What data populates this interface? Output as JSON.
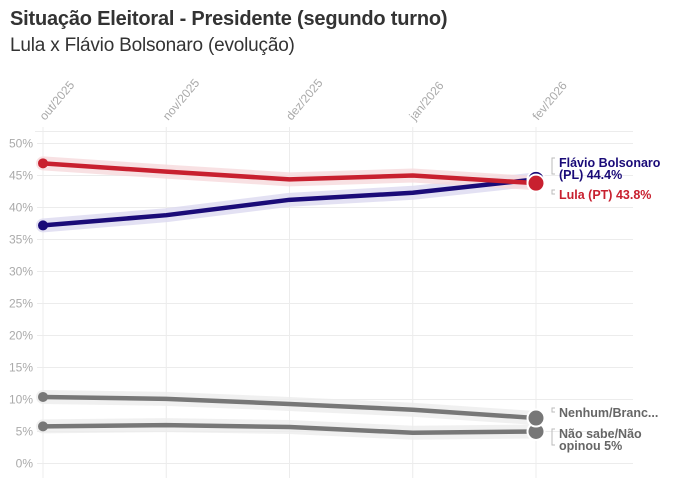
{
  "header": {
    "title": "Situação Eleitoral - Presidente (segundo turno)",
    "subtitle": "Lula x Flávio Bolsonaro (evolução)"
  },
  "chart_data": {
    "type": "line",
    "title": "Situação Eleitoral - Presidente (segundo turno)",
    "subtitle": "Lula x Flávio Bolsonaro (evolução)",
    "xlabel": "",
    "ylabel": "",
    "categories": [
      "out/2025",
      "nov/2025",
      "dez/2025",
      "jan/2026",
      "fev/2026"
    ],
    "ylim": [
      0,
      50
    ],
    "yticks": [
      0,
      5,
      10,
      15,
      20,
      25,
      30,
      35,
      40,
      45,
      50
    ],
    "ytick_labels": [
      "0%",
      "5%",
      "10%",
      "15%",
      "20%",
      "25%",
      "30%",
      "35%",
      "40%",
      "45%",
      "50%"
    ],
    "grid": true,
    "legend": "direct-labels-right",
    "series": [
      {
        "name": "Lula (PT)",
        "color": "#c8202f",
        "band_color": "#f6d9dc",
        "values": [
          46.9,
          45.6,
          44.4,
          45.0,
          43.8
        ],
        "end_label": [
          "Lula (PT) 43.8%"
        ]
      },
      {
        "name": "Flávio Bolsonaro (PL)",
        "color": "#1a0b78",
        "band_color": "#dcdaf0",
        "values": [
          37.2,
          38.8,
          41.2,
          42.3,
          44.4
        ],
        "end_label": [
          "Flávio Bolsonaro",
          "(PL) 44.4%"
        ]
      },
      {
        "name": "Nenhum/Branco/Nulo",
        "color": "#777777",
        "band_color": "#ececec",
        "values": [
          10.4,
          10.1,
          9.3,
          8.4,
          7.1
        ],
        "end_label": [
          "Nenhum/Branc..."
        ]
      },
      {
        "name": "Não sabe/Não opinou",
        "color": "#777777",
        "band_color": "#ececec",
        "values": [
          5.8,
          6.0,
          5.7,
          4.8,
          5.0
        ],
        "end_label": [
          "Não sabe/Não",
          "opinou 5%"
        ]
      }
    ]
  }
}
